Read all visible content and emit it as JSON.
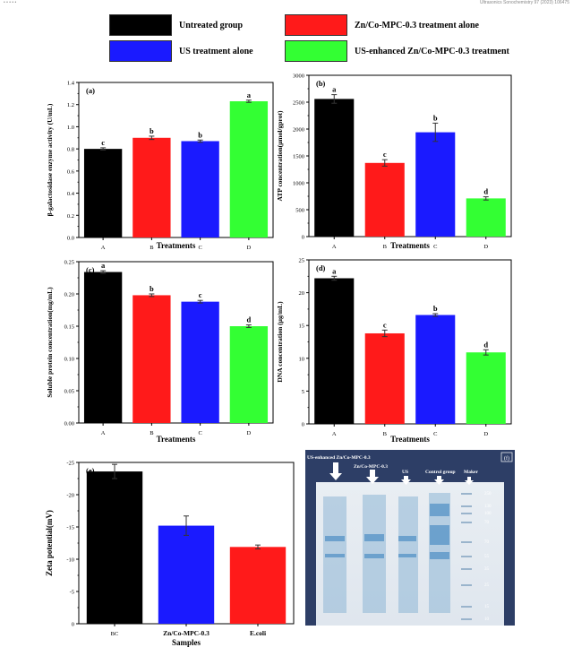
{
  "header": {
    "left": "• • • • •",
    "right": "Ultrasonics Sonochemistry 97 (2023) 106475"
  },
  "legend": [
    {
      "label": "Untreated group",
      "color": "#000000"
    },
    {
      "label": "Zn/Co-MPC-0.3 treatment alone",
      "color": "#ff1a1a"
    },
    {
      "label": "US treatment alone",
      "color": "#1a1aff"
    },
    {
      "label": "US-enhanced Zn/Co-MPC-0.3 treatment",
      "color": "#33ff33"
    }
  ],
  "colors": {
    "A": "#000000",
    "B": "#ff1a1a",
    "C": "#1a1aff",
    "D": "#33ff33"
  },
  "chart_data": [
    {
      "panel": "(a)",
      "type": "bar",
      "categories": [
        "A",
        "B",
        "C",
        "D"
      ],
      "values": [
        0.8,
        0.9,
        0.87,
        1.23
      ],
      "errors": [
        0.01,
        0.015,
        0.01,
        0.01
      ],
      "letters": [
        "c",
        "b",
        "b",
        "a"
      ],
      "xlabel": "Treatments",
      "ylabel": "β-galactosidase enzyme activity (U/mL)",
      "ylim": [
        0,
        1.4
      ],
      "yticks": [
        "0.0",
        "0.2",
        "0.4",
        "0.6",
        "0.8",
        "1.0",
        "1.2",
        "1.4"
      ]
    },
    {
      "panel": "(b)",
      "type": "bar",
      "categories": [
        "A",
        "B",
        "C",
        "D"
      ],
      "values": [
        2560,
        1370,
        1940,
        710
      ],
      "errors": [
        80,
        60,
        170,
        30
      ],
      "letters": [
        "a",
        "c",
        "b",
        "d"
      ],
      "xlabel": "Treatments",
      "ylabel": "ATP concentration(µmol/gprot)",
      "ylim": [
        0,
        3000
      ],
      "yticks": [
        "0",
        "500",
        "1000",
        "1500",
        "2000",
        "2500",
        "3000"
      ]
    },
    {
      "panel": "(c)",
      "type": "bar",
      "categories": [
        "A",
        "B",
        "C",
        "D"
      ],
      "values": [
        0.234,
        0.198,
        0.188,
        0.15
      ],
      "errors": [
        0.002,
        0.002,
        0.002,
        0.002
      ],
      "letters": [
        "a",
        "b",
        "c",
        "d"
      ],
      "xlabel": "Treatments",
      "ylabel": "Soluble protein concentration(mg/mL)",
      "ylim": [
        0,
        0.25
      ],
      "yticks": [
        "0.00",
        "0.05",
        "0.10",
        "0.15",
        "0.20",
        "0.25"
      ]
    },
    {
      "panel": "(d)",
      "type": "bar",
      "categories": [
        "A",
        "B",
        "C",
        "D"
      ],
      "values": [
        22.2,
        13.8,
        16.6,
        10.9
      ],
      "errors": [
        0.3,
        0.5,
        0.2,
        0.4
      ],
      "letters": [
        "a",
        "c",
        "b",
        "d"
      ],
      "xlabel": "Treatments",
      "ylabel": "DNA concentration (µg/mL)",
      "ylim": [
        0,
        25
      ],
      "yticks": [
        "0",
        "5",
        "10",
        "15",
        "20",
        "25"
      ]
    },
    {
      "panel": "(e)",
      "type": "bar",
      "categories": [
        "BC",
        "Zn/Co-MPC-0.3",
        "E.coli"
      ],
      "values": [
        -23.6,
        -15.2,
        -11.9
      ],
      "errors": [
        1.1,
        1.5,
        0.3
      ],
      "bar_colors": [
        "#000000",
        "#1a1aff",
        "#ff1a1a"
      ],
      "xlabel": "Samples",
      "ylabel": "Zeta potential(mV)",
      "ylim": [
        0,
        -25
      ],
      "yticks": [
        "0",
        "-5",
        "-10",
        "-15",
        "-20",
        "-25"
      ]
    }
  ],
  "gel": {
    "panel": "(f)",
    "lanes": [
      "US-enhanced Zn/Co-MPC-0.3",
      "Zn/Co-MPC-0.3",
      "US",
      "Control group",
      "Maker"
    ],
    "markers": [
      "250",
      "130",
      "100",
      "70",
      "70",
      "55",
      "35",
      "25",
      "15",
      "10"
    ]
  }
}
